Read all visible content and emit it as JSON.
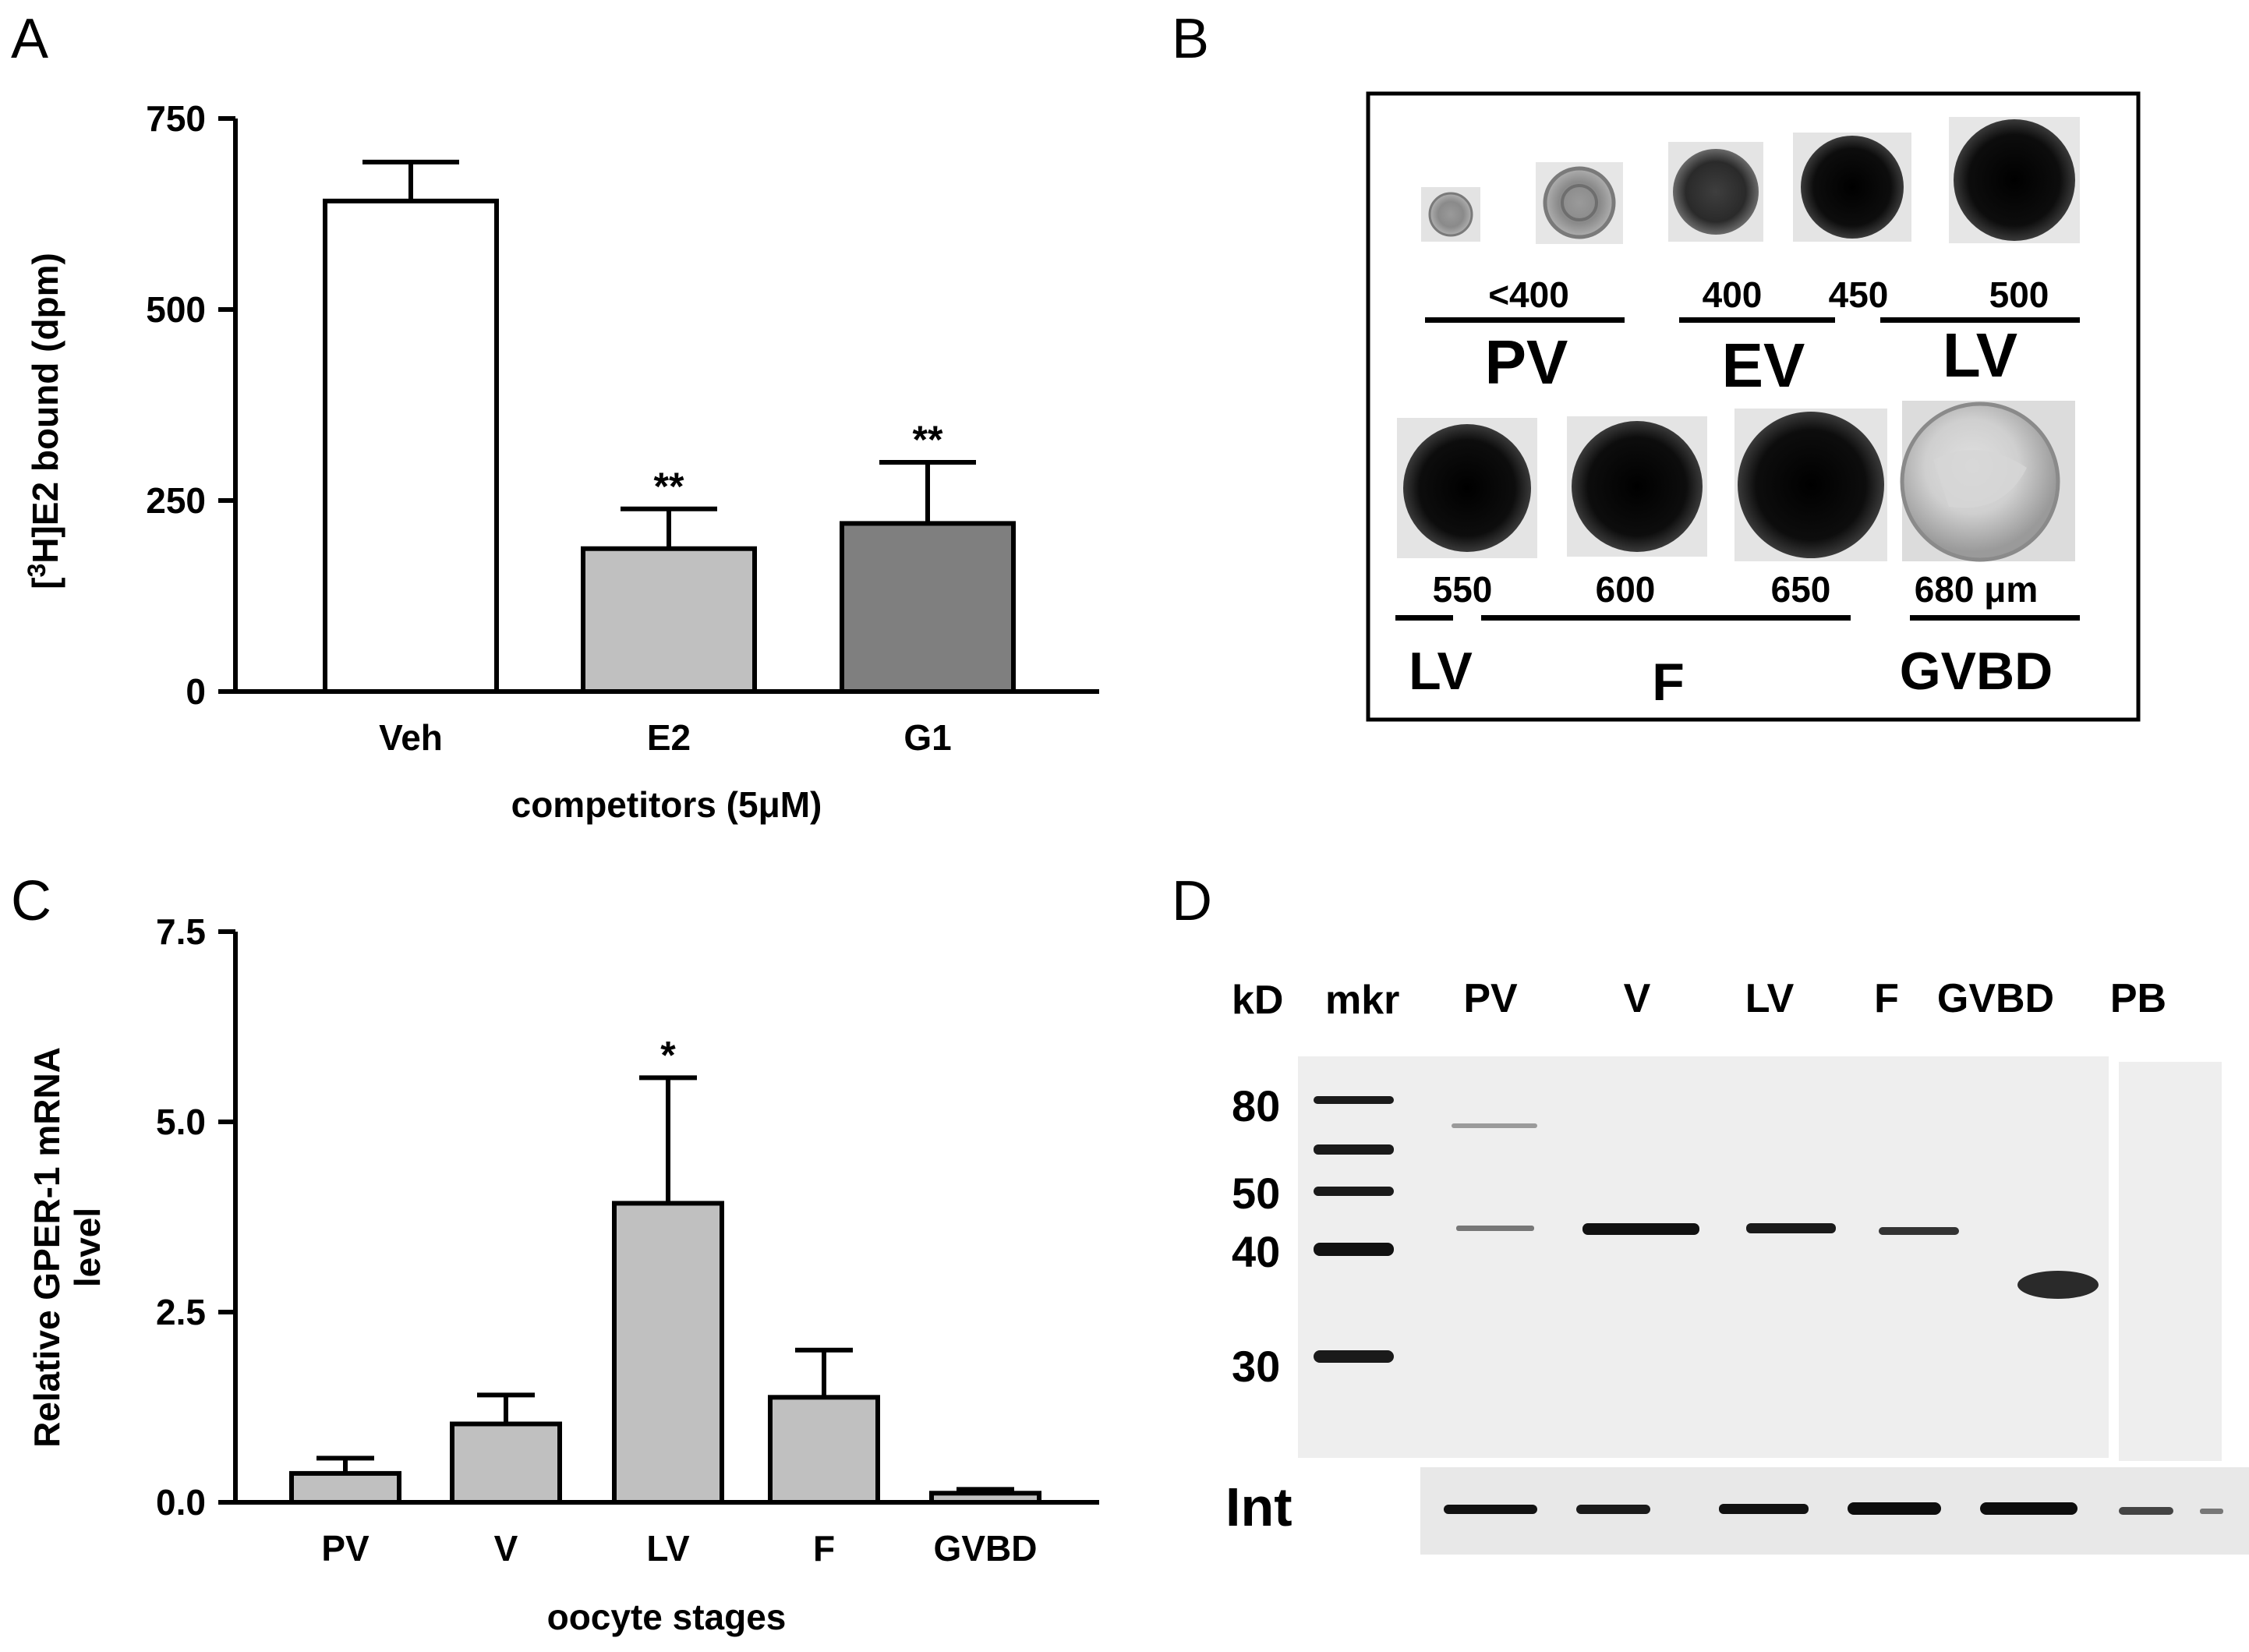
{
  "panels": {
    "A": {
      "letter": "A",
      "chart_data": {
        "type": "bar",
        "ylabel_parts": [
          "[",
          "3",
          "H]E2 bound (dpm)"
        ],
        "xlabel": "competitors (5μM)",
        "ylim": [
          0,
          750
        ],
        "yticks": [
          0,
          250,
          500,
          750
        ],
        "categories": [
          "Veh",
          "E2",
          "G1"
        ],
        "values": [
          642,
          187,
          220
        ],
        "errors": [
          51,
          52,
          80
        ],
        "colors": [
          "#ffffff",
          "#c0c0c0",
          "#7f7f7f"
        ],
        "annotations": [
          "",
          "**",
          "**"
        ]
      }
    },
    "B": {
      "letter": "B",
      "row1": {
        "sizes": [
          {
            "text": "<400"
          },
          {
            "text": "400"
          },
          {
            "text": "450"
          },
          {
            "text": "500"
          }
        ],
        "stages": [
          "PV",
          "EV",
          "LV"
        ]
      },
      "row2": {
        "sizes": [
          {
            "text": "550"
          },
          {
            "text": "600"
          },
          {
            "text": "650"
          },
          {
            "text": "680 μm"
          }
        ],
        "stages": [
          "LV",
          "F",
          "GVBD"
        ]
      }
    },
    "C": {
      "letter": "C",
      "chart_data": {
        "type": "bar",
        "ylabel_lines": [
          "Relative GPER-1 mRNA",
          "level"
        ],
        "xlabel": "oocyte stages",
        "ylim": [
          0,
          7.5
        ],
        "yticks": [
          "0.0",
          "2.5",
          "5.0",
          "7.5"
        ],
        "categories": [
          "PV",
          "V",
          "LV",
          "F",
          "GVBD"
        ],
        "values": [
          0.38,
          1.03,
          3.93,
          1.38,
          0.12
        ],
        "errors": [
          0.2,
          0.38,
          1.65,
          0.62,
          0.05
        ],
        "colors": [
          "#c0c0c0",
          "#c0c0c0",
          "#c0c0c0",
          "#c0c0c0",
          "#c0c0c0"
        ],
        "annotations": [
          "",
          "",
          "*",
          "",
          ""
        ]
      }
    },
    "D": {
      "letter": "D",
      "header": {
        "kd": "kD",
        "mkr": "mkr"
      },
      "lanes": [
        "PV",
        "V",
        "LV",
        "F",
        "GVBD",
        "PB"
      ],
      "markers": [
        "80",
        "50",
        "40",
        "30"
      ],
      "int_label": "Int"
    }
  },
  "colors": {
    "axis": "#000000",
    "blot_bg": "#eeeeee",
    "band": "#1a1a1a"
  }
}
